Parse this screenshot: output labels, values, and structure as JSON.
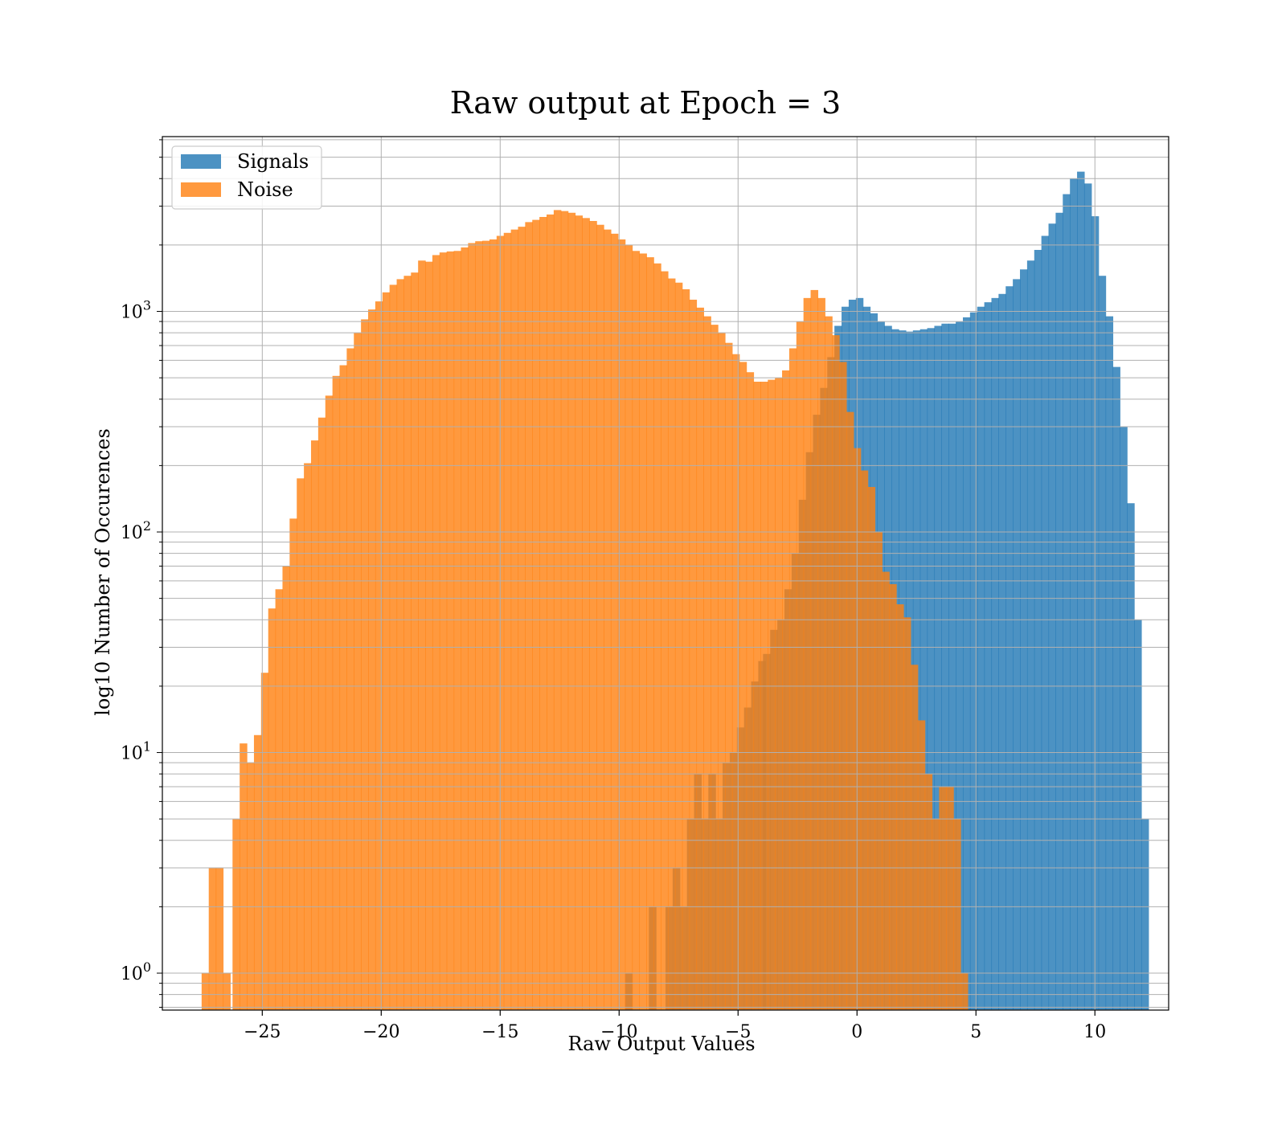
{
  "chart_data": {
    "type": "bar",
    "title": "Raw output at Epoch = 3",
    "xlabel": "Raw Output Values",
    "ylabel": "log10 Number of Occurences",
    "xlim": [
      -29.2,
      13.1
    ],
    "ylim": [
      0.68,
      6200
    ],
    "yscale": "log",
    "grid": true,
    "legend_position": "top-left",
    "x_ticks": [
      {
        "value": -25,
        "label": "−25"
      },
      {
        "value": -20,
        "label": "−20"
      },
      {
        "value": -15,
        "label": "−15"
      },
      {
        "value": -10,
        "label": "−10"
      },
      {
        "value": -5,
        "label": "−5"
      },
      {
        "value": 0,
        "label": "0"
      },
      {
        "value": 5,
        "label": "5"
      },
      {
        "value": 10,
        "label": "10"
      }
    ],
    "y_ticks": [
      {
        "value": 1,
        "base": "10",
        "exp": "0"
      },
      {
        "value": 10,
        "base": "10",
        "exp": "1"
      },
      {
        "value": 100,
        "base": "10",
        "exp": "2"
      },
      {
        "value": 1000,
        "base": "10",
        "exp": "3"
      }
    ],
    "series": [
      {
        "name": "Signals",
        "color": "#1f77b4",
        "points": [
          [
            -9.6,
            1
          ],
          [
            -8.6,
            2
          ],
          [
            -7.9,
            2
          ],
          [
            -7.6,
            3
          ],
          [
            -7.3,
            2
          ],
          [
            -7.0,
            5
          ],
          [
            -6.7,
            8
          ],
          [
            -6.4,
            5
          ],
          [
            -6.1,
            8
          ],
          [
            -5.8,
            5
          ],
          [
            -5.5,
            9
          ],
          [
            -5.2,
            10
          ],
          [
            -4.9,
            13
          ],
          [
            -4.6,
            16
          ],
          [
            -4.3,
            21
          ],
          [
            -4.0,
            26
          ],
          [
            -3.8,
            28
          ],
          [
            -3.5,
            36
          ],
          [
            -3.2,
            40
          ],
          [
            -2.9,
            55
          ],
          [
            -2.6,
            80
          ],
          [
            -2.3,
            140
          ],
          [
            -2.0,
            230
          ],
          [
            -1.7,
            340
          ],
          [
            -1.4,
            450
          ],
          [
            -1.1,
            620
          ],
          [
            -0.8,
            860
          ],
          [
            -0.5,
            1050
          ],
          [
            -0.2,
            1130
          ],
          [
            0.1,
            1150
          ],
          [
            0.4,
            1050
          ],
          [
            0.7,
            980
          ],
          [
            1.0,
            900
          ],
          [
            1.3,
            860
          ],
          [
            1.6,
            830
          ],
          [
            1.9,
            820
          ],
          [
            2.2,
            810
          ],
          [
            2.5,
            820
          ],
          [
            2.8,
            830
          ],
          [
            3.1,
            840
          ],
          [
            3.4,
            860
          ],
          [
            3.7,
            880
          ],
          [
            4.0,
            880
          ],
          [
            4.3,
            900
          ],
          [
            4.6,
            940
          ],
          [
            4.9,
            990
          ],
          [
            5.2,
            1050
          ],
          [
            5.5,
            1100
          ],
          [
            5.8,
            1150
          ],
          [
            6.1,
            1200
          ],
          [
            6.4,
            1300
          ],
          [
            6.7,
            1400
          ],
          [
            7.0,
            1550
          ],
          [
            7.3,
            1700
          ],
          [
            7.6,
            1900
          ],
          [
            7.9,
            2200
          ],
          [
            8.2,
            2500
          ],
          [
            8.5,
            2800
          ],
          [
            8.8,
            3400
          ],
          [
            9.1,
            4000
          ],
          [
            9.4,
            4300
          ],
          [
            9.7,
            3800
          ],
          [
            10.0,
            2700
          ],
          [
            10.3,
            1450
          ],
          [
            10.6,
            950
          ],
          [
            10.9,
            560
          ],
          [
            11.2,
            300
          ],
          [
            11.5,
            135
          ],
          [
            11.8,
            40
          ],
          [
            12.1,
            5
          ]
        ]
      },
      {
        "name": "Noise",
        "color": "#ff7f0e",
        "points": [
          [
            -27.4,
            1
          ],
          [
            -27.1,
            3
          ],
          [
            -26.8,
            3
          ],
          [
            -26.5,
            1
          ],
          [
            -26.1,
            5
          ],
          [
            -25.8,
            11
          ],
          [
            -25.5,
            9
          ],
          [
            -25.2,
            12
          ],
          [
            -24.9,
            23
          ],
          [
            -24.6,
            45
          ],
          [
            -24.3,
            55
          ],
          [
            -24.0,
            70
          ],
          [
            -23.7,
            115
          ],
          [
            -23.4,
            175
          ],
          [
            -23.1,
            205
          ],
          [
            -22.8,
            260
          ],
          [
            -22.5,
            330
          ],
          [
            -22.2,
            415
          ],
          [
            -21.9,
            510
          ],
          [
            -21.6,
            570
          ],
          [
            -21.3,
            680
          ],
          [
            -21.0,
            800
          ],
          [
            -20.7,
            920
          ],
          [
            -20.4,
            1020
          ],
          [
            -20.1,
            1110
          ],
          [
            -19.8,
            1220
          ],
          [
            -19.5,
            1320
          ],
          [
            -19.2,
            1400
          ],
          [
            -18.9,
            1450
          ],
          [
            -18.6,
            1500
          ],
          [
            -18.3,
            1700
          ],
          [
            -18.0,
            1680
          ],
          [
            -17.7,
            1800
          ],
          [
            -17.4,
            1850
          ],
          [
            -17.1,
            1870
          ],
          [
            -16.8,
            1880
          ],
          [
            -16.5,
            1950
          ],
          [
            -16.2,
            2040
          ],
          [
            -15.9,
            2080
          ],
          [
            -15.6,
            2090
          ],
          [
            -15.3,
            2120
          ],
          [
            -15.0,
            2200
          ],
          [
            -14.7,
            2270
          ],
          [
            -14.4,
            2350
          ],
          [
            -14.1,
            2420
          ],
          [
            -13.8,
            2540
          ],
          [
            -13.5,
            2600
          ],
          [
            -13.2,
            2680
          ],
          [
            -12.9,
            2750
          ],
          [
            -12.6,
            2880
          ],
          [
            -12.3,
            2850
          ],
          [
            -12.0,
            2800
          ],
          [
            -11.7,
            2720
          ],
          [
            -11.4,
            2650
          ],
          [
            -11.1,
            2570
          ],
          [
            -10.8,
            2470
          ],
          [
            -10.5,
            2350
          ],
          [
            -10.2,
            2250
          ],
          [
            -9.9,
            2120
          ],
          [
            -9.6,
            2000
          ],
          [
            -9.3,
            1880
          ],
          [
            -9.0,
            1830
          ],
          [
            -8.7,
            1760
          ],
          [
            -8.4,
            1650
          ],
          [
            -8.1,
            1520
          ],
          [
            -7.8,
            1410
          ],
          [
            -7.5,
            1350
          ],
          [
            -7.2,
            1260
          ],
          [
            -6.9,
            1130
          ],
          [
            -6.6,
            1040
          ],
          [
            -6.3,
            950
          ],
          [
            -6.0,
            870
          ],
          [
            -5.7,
            800
          ],
          [
            -5.4,
            720
          ],
          [
            -5.1,
            640
          ],
          [
            -4.8,
            590
          ],
          [
            -4.5,
            530
          ],
          [
            -4.2,
            480
          ],
          [
            -3.9,
            480
          ],
          [
            -3.6,
            490
          ],
          [
            -3.3,
            500
          ],
          [
            -3.0,
            540
          ],
          [
            -2.7,
            680
          ],
          [
            -2.4,
            900
          ],
          [
            -2.1,
            1150
          ],
          [
            -1.8,
            1250
          ],
          [
            -1.5,
            1150
          ],
          [
            -1.2,
            950
          ],
          [
            -0.9,
            780
          ],
          [
            -0.6,
            590
          ],
          [
            -0.3,
            350
          ],
          [
            0.0,
            240
          ],
          [
            0.3,
            190
          ],
          [
            0.6,
            160
          ],
          [
            0.9,
            100
          ],
          [
            1.2,
            66
          ],
          [
            1.5,
            58
          ],
          [
            1.8,
            47
          ],
          [
            2.1,
            41
          ],
          [
            2.4,
            25
          ],
          [
            2.7,
            14
          ],
          [
            3.0,
            8
          ],
          [
            3.3,
            5
          ],
          [
            3.6,
            7
          ],
          [
            3.9,
            7
          ],
          [
            4.2,
            5
          ],
          [
            4.5,
            1
          ]
        ]
      }
    ]
  }
}
